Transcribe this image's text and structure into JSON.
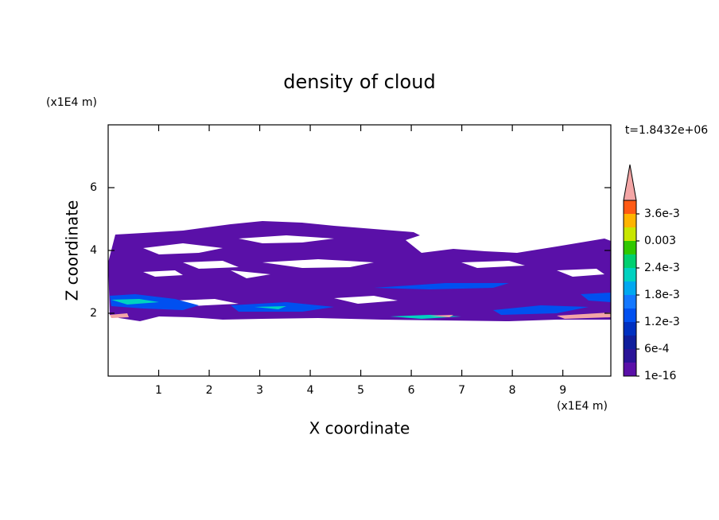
{
  "chart_data": {
    "type": "contour",
    "title": "density of cloud",
    "xlabel": "X coordinate",
    "ylabel": "Z coordinate",
    "xunit": "(x1E4 m)",
    "yunit": "(x1E4 m)",
    "time_label": "t=1.8432e+06",
    "xlim": [
      0,
      9.95
    ],
    "ylim": [
      0,
      8
    ],
    "xticks": [
      1,
      2,
      3,
      4,
      5,
      6,
      7,
      8,
      9
    ],
    "yticks": [
      2,
      4,
      6
    ],
    "colorbar": {
      "lim": [
        0,
        0.0039
      ],
      "ticks": [
        1e-16,
        {
          "value": 0.0006,
          "label": "6e-4"
        },
        {
          "value": 0.0012,
          "label": "1.2e-3"
        },
        {
          "value": 0.0018,
          "label": "1.8e-3"
        },
        {
          "value": 0.0024,
          "label": "2.4e-3"
        },
        0.003,
        {
          "value": 0.0036,
          "label": "3.6e-3"
        }
      ],
      "colors": [
        "#5a10a8",
        "#2a1498",
        "#101e9c",
        "#0030c0",
        "#0050f0",
        "#1478ff",
        "#00a8f0",
        "#00d2c0",
        "#00d070",
        "#30c800",
        "#c8e600",
        "#ffb400",
        "#ff5a14"
      ],
      "extend_color": "#f4a6a6"
    }
  }
}
